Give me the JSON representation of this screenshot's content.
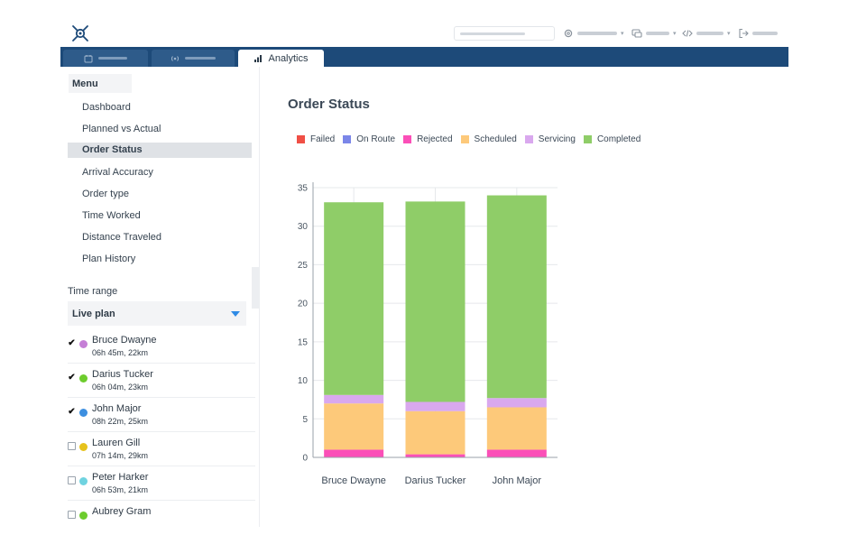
{
  "nav": {
    "tabs": [
      {
        "label": "",
        "icon": "calendar-icon",
        "active": false
      },
      {
        "label": "",
        "icon": "broadcast-icon",
        "active": false
      },
      {
        "label": "Analytics",
        "icon": "bar-chart-icon",
        "active": true
      }
    ]
  },
  "sidebar": {
    "menu_title": "Menu",
    "items": [
      {
        "label": "Dashboard"
      },
      {
        "label": "Planned vs Actual"
      },
      {
        "label": "Order Status",
        "active": true
      },
      {
        "label": "Arrival Accuracy"
      },
      {
        "label": "Order type"
      },
      {
        "label": "Time Worked"
      },
      {
        "label": "Distance Traveled"
      },
      {
        "label": "Plan History"
      }
    ],
    "time_range_label": "Time range",
    "time_range_value": "Live plan",
    "people": [
      {
        "name": "Bruce Dwayne",
        "stats": "06h 45m, 22km",
        "checked": true,
        "color": "#c57fd6"
      },
      {
        "name": "Darius Tucker",
        "stats": "06h 04m, 23km",
        "checked": true,
        "color": "#6dcc2d"
      },
      {
        "name": "John Major",
        "stats": "08h 22m, 25km",
        "checked": true,
        "color": "#3d8fe0"
      },
      {
        "name": "Lauren Gill",
        "stats": "07h 14m, 29km",
        "checked": false,
        "color": "#e6c21c"
      },
      {
        "name": "Peter Harker",
        "stats": "06h 53m, 21km",
        "checked": false,
        "color": "#6fd3e0"
      },
      {
        "name": "Aubrey Gram",
        "stats": "",
        "checked": false,
        "color": "#6dcc2d"
      }
    ]
  },
  "main": {
    "title": "Order Status"
  },
  "chart_data": {
    "type": "bar",
    "stacked": true,
    "categories": [
      "Bruce Dwayne",
      "Darius Tucker",
      "John Major"
    ],
    "series": [
      {
        "name": "Failed",
        "color": "#f04f45",
        "values": [
          0,
          0,
          0
        ]
      },
      {
        "name": "On Route",
        "color": "#7b86e8",
        "values": [
          0,
          0,
          0
        ]
      },
      {
        "name": "Rejected",
        "color": "#fb4fb8",
        "values": [
          1,
          0.4,
          1
        ]
      },
      {
        "name": "Scheduled",
        "color": "#fdc97a",
        "values": [
          6,
          5.6,
          5.5
        ]
      },
      {
        "name": "Servicing",
        "color": "#d9a8ee",
        "values": [
          1.1,
          1.2,
          1.2
        ]
      },
      {
        "name": "Completed",
        "color": "#8fcd68",
        "values": [
          25,
          26,
          26.3
        ]
      }
    ],
    "yticks": [
      0,
      5,
      10,
      15,
      20,
      25,
      30,
      35
    ],
    "ylim": [
      0,
      35
    ],
    "grid": true,
    "legend_position": "top-left"
  }
}
